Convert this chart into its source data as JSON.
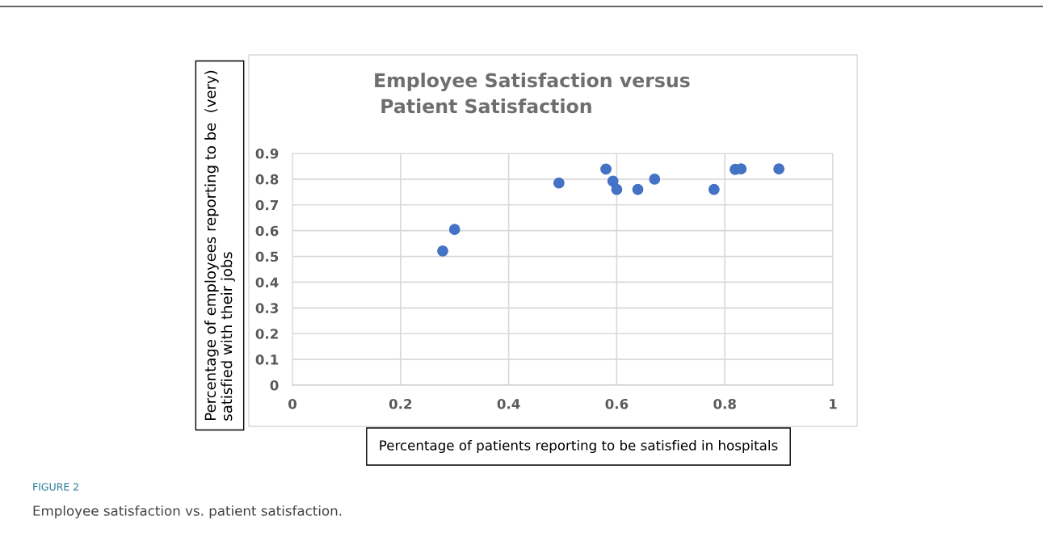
{
  "chart_data": {
    "type": "scatter",
    "title": "Employee Satisfaction versus\n Patient Satisfaction",
    "xlabel": "Percentage of patients reporting to be satisfied in hospitals",
    "ylabel": "Percentage of employees reporting to be  (very)\nsatisfied with their jobs",
    "x": [
      0.278,
      0.3,
      0.493,
      0.58,
      0.593,
      0.6,
      0.639,
      0.67,
      0.78,
      0.819,
      0.83,
      0.9
    ],
    "series": [
      {
        "color": "#4472c4",
        "values": [
          0.521,
          0.605,
          0.785,
          0.839,
          0.792,
          0.76,
          0.76,
          0.8,
          0.76,
          0.838,
          0.84,
          0.84
        ]
      }
    ],
    "xlim": [
      0,
      1
    ],
    "ylim": [
      0,
      0.9
    ],
    "xticks": [
      {
        "value": 0,
        "label": "0"
      },
      0.2,
      0.4,
      0.6,
      0.8,
      {
        "value": 1,
        "label": "1"
      }
    ],
    "yticks": [
      {
        "value": 0,
        "label": "0"
      },
      0.1,
      0.2,
      0.3,
      0.4,
      0.5,
      0.6,
      0.7,
      0.8,
      0.9
    ],
    "grid": true,
    "marker": "circle",
    "legend": false,
    "annotations": [
      "FIGURE 2",
      "Employee satisfaction vs. patient satisfaction."
    ]
  }
}
